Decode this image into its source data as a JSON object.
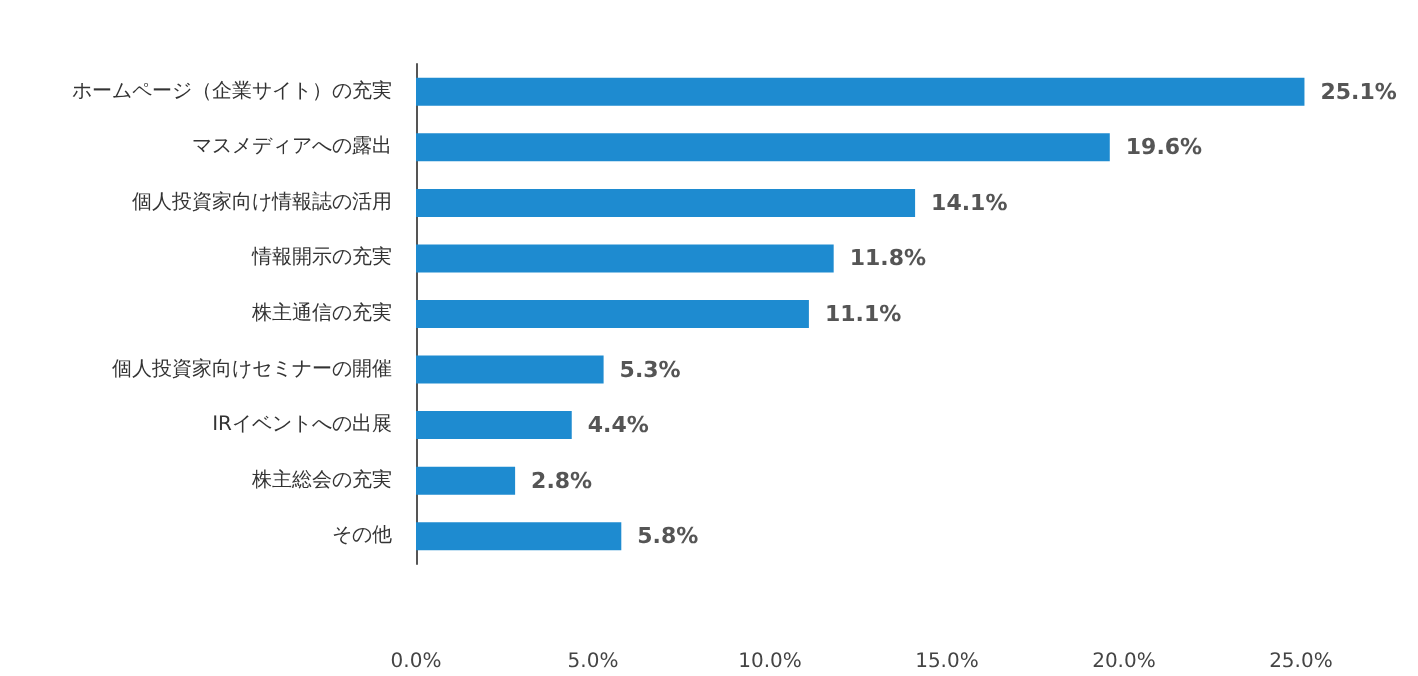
{
  "chart_data": {
    "type": "bar",
    "orientation": "horizontal",
    "categories": [
      "ホームページ（企業サイト）の充実",
      "マスメディアへの露出",
      "個人投資家向け情報誌の活用",
      "情報開示の充実",
      "株主通信の充実",
      "個人投資家向けセミナーの開催",
      "IRイベントへの出展",
      "株主総会の充実",
      "その他"
    ],
    "values": [
      25.1,
      19.6,
      14.1,
      11.8,
      11.1,
      5.3,
      4.4,
      2.8,
      5.8
    ],
    "value_labels": [
      "25.1%",
      "19.6%",
      "14.1%",
      "11.8%",
      "11.1%",
      "5.3%",
      "4.4%",
      "2.8%",
      "5.8%"
    ],
    "color": "#1e8bd0",
    "xlim": [
      0,
      25.2
    ],
    "xticks": [
      {
        "value": 0,
        "label": "0.0%"
      },
      {
        "value": 5,
        "label": "5.0%"
      },
      {
        "value": 10,
        "label": "10.0%"
      },
      {
        "value": 15,
        "label": "15.0%"
      },
      {
        "value": 20,
        "label": "20.0%"
      },
      {
        "value": 25,
        "label": "25.0%"
      }
    ],
    "grid": false
  }
}
